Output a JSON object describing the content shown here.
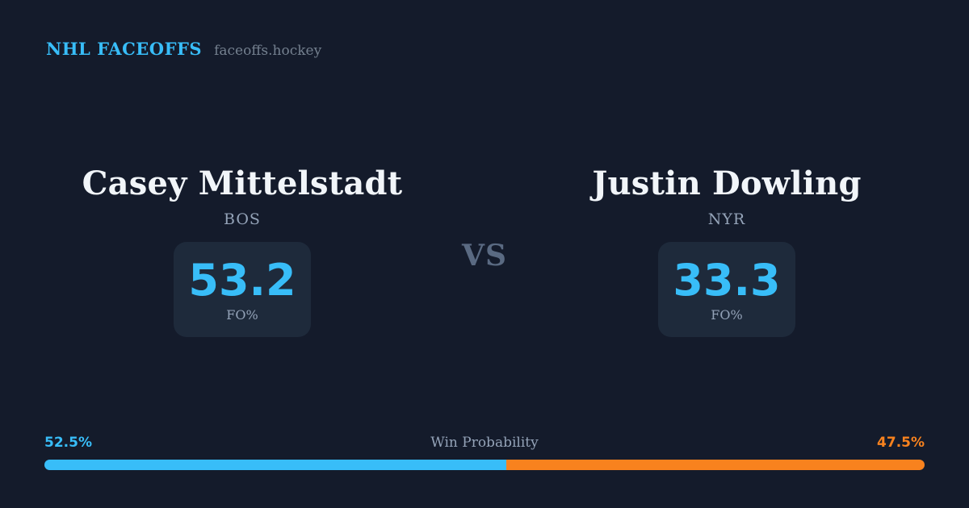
{
  "theme": {
    "background": "#141b2b",
    "panel_bg": "#1e2a3b",
    "accent_blue": "#38bdf8",
    "accent_orange": "#f8821e",
    "text_primary": "#f1f5f9",
    "text_muted": "#94a3b8",
    "vs_color": "#5a6a82"
  },
  "header": {
    "brand": "NHL FACEOFFS",
    "site": "faceoffs.hockey"
  },
  "matchup": {
    "vs_label": "VS",
    "players": [
      {
        "name": "Casey Mittelstadt",
        "team": "BOS",
        "stat_value": "53.2",
        "stat_label": "FO%"
      },
      {
        "name": "Justin Dowling",
        "team": "NYR",
        "stat_value": "33.3",
        "stat_label": "FO%"
      }
    ]
  },
  "win_probability": {
    "label": "Win Probability",
    "left_pct_text": "52.5%",
    "right_pct_text": "47.5%",
    "left_value": 52.5,
    "right_value": 47.5
  },
  "chart_data": {
    "type": "bar",
    "title": "Win Probability",
    "categories": [
      "Casey Mittelstadt (BOS)",
      "Justin Dowling (NYR)"
    ],
    "series": [
      {
        "name": "FO%",
        "values": [
          53.2,
          33.3
        ]
      },
      {
        "name": "Win Probability %",
        "values": [
          52.5,
          47.5
        ]
      }
    ],
    "xlabel": "",
    "ylabel": "",
    "ylim": [
      0,
      100
    ],
    "grid": false,
    "legend_position": "none"
  }
}
